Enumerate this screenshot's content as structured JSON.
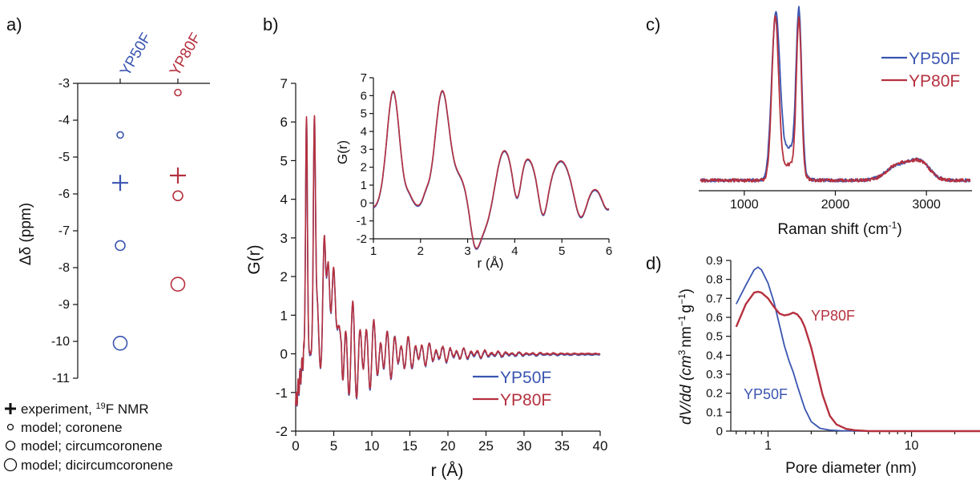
{
  "colors": {
    "yp50f": "#3a55b0",
    "yp80f": "#b5313f",
    "axis": "#111111"
  },
  "panels": {
    "a": {
      "label": "a)",
      "ylabel": "Δδ (ppm)",
      "series_labels": [
        "YP50F",
        "YP80F"
      ]
    },
    "b": {
      "label": "b)",
      "ylabel": "G(r)",
      "xlabel": "r (Å)",
      "inset_ylabel": "G(r)",
      "inset_xlabel": "r (Å)",
      "legend": [
        "YP50F",
        "YP80F"
      ]
    },
    "c": {
      "label": "c)",
      "xlabel": "Raman shift (cm",
      "xlabel_sup": "-1",
      "xlabel_end": ")",
      "legend": [
        "YP50F",
        "YP80F"
      ]
    },
    "d": {
      "label": "d)",
      "ylabel_main": "dV/dd (cm",
      "ylabel_rest": "nm",
      "ylabel_sup1": "3",
      "ylabel_sup2": "−1",
      "ylabel_g": "g",
      "ylabel_sup3": "−1",
      "ylabel_end": ")",
      "xlabel": "Pore diameter (nm)",
      "curve_labels": [
        "YP80F",
        "YP50F"
      ]
    }
  },
  "legend_a": [
    {
      "marker": "plus",
      "text": "experiment, ",
      "sup": "19",
      "after": "F NMR"
    },
    {
      "marker": "circle-small",
      "text": "model; coronene"
    },
    {
      "marker": "circle-medium",
      "text": "model; circumcoronene"
    },
    {
      "marker": "circle-large",
      "text": "model; dicircumcoronene"
    }
  ],
  "chart_data": [
    {
      "id": "a",
      "type": "scatter",
      "categories": [
        "YP50F",
        "YP80F"
      ],
      "ylabel": "Δδ (ppm)",
      "ylim": [
        -11,
        -3
      ],
      "yticks": [
        -11,
        -10,
        -9,
        -8,
        -7,
        -6,
        -5,
        -4,
        -3
      ],
      "series": [
        {
          "name": "experiment, 19F NMR",
          "marker": "plus",
          "values": [
            -5.7,
            -5.5
          ]
        },
        {
          "name": "model; coronene",
          "marker": "circle-small",
          "values": [
            -4.4,
            -3.25
          ]
        },
        {
          "name": "model; circumcoronene",
          "marker": "circle-medium",
          "values": [
            -7.4,
            -6.05
          ]
        },
        {
          "name": "model; dicircumcoronene",
          "marker": "circle-large",
          "values": [
            -10.05,
            -8.45
          ]
        }
      ]
    },
    {
      "id": "b",
      "type": "line",
      "xlabel": "r (Å)",
      "ylabel": "G(r)",
      "xlim": [
        0,
        40
      ],
      "ylim": [
        -2,
        7
      ],
      "xticks": [
        0,
        5,
        10,
        15,
        20,
        25,
        30,
        35,
        40
      ],
      "yticks": [
        -2,
        -1,
        0,
        1,
        2,
        3,
        4,
        5,
        6,
        7
      ],
      "peaks": {
        "r": [
          1.42,
          2.46,
          2.84,
          3.75,
          4.27,
          4.98,
          5.68
        ],
        "g": [
          6.1,
          6.05,
          1.3,
          3.0,
          2.3,
          2.2,
          0.7
        ]
      },
      "series": [
        {
          "name": "YP50F"
        },
        {
          "name": "YP80F"
        }
      ],
      "inset": {
        "xlim": [
          1,
          6
        ],
        "ylim": [
          -2,
          7
        ],
        "xticks": [
          1,
          2,
          3,
          4,
          5,
          6
        ],
        "yticks": [
          -2,
          -1,
          0,
          1,
          2,
          3,
          4,
          5,
          6,
          7
        ],
        "xlabel": "r (Å)",
        "ylabel": "G(r)"
      }
    },
    {
      "id": "c",
      "type": "line",
      "xlabel": "Raman shift (cm-1)",
      "xlim": [
        500,
        3500
      ],
      "xticks": [
        1000,
        2000,
        3000
      ],
      "series": [
        {
          "name": "YP50F",
          "peaks": [
            {
              "x": 1345,
              "h": 1.0,
              "w": 45
            },
            {
              "x": 1600,
              "h": 0.97,
              "w": 30
            },
            {
              "x": 1500,
              "h": 0.2,
              "w": 90
            },
            {
              "x": 2690,
              "h": 0.09,
              "w": 130
            },
            {
              "x": 2930,
              "h": 0.11,
              "w": 110
            }
          ]
        },
        {
          "name": "YP80F",
          "peaks": [
            {
              "x": 1340,
              "h": 1.0,
              "w": 38
            },
            {
              "x": 1600,
              "h": 0.96,
              "w": 28
            },
            {
              "x": 1500,
              "h": 0.1,
              "w": 90
            },
            {
              "x": 2690,
              "h": 0.1,
              "w": 120
            },
            {
              "x": 2930,
              "h": 0.11,
              "w": 105
            }
          ]
        }
      ]
    },
    {
      "id": "d",
      "type": "line",
      "xlabel": "Pore diameter (nm)",
      "ylabel": "dV/dd (cm3 nm−1 g−1)",
      "xscale": "log",
      "xlim": [
        0.55,
        30
      ],
      "ylim": [
        0,
        0.9
      ],
      "xticks": [
        1,
        10
      ],
      "yticks": [
        0,
        0.1,
        0.2,
        0.3,
        0.4,
        0.5,
        0.6,
        0.7,
        0.8,
        0.9
      ],
      "series": [
        {
          "name": "YP50F",
          "x": [
            0.6,
            0.7,
            0.8,
            0.85,
            0.9,
            1.0,
            1.1,
            1.2,
            1.3,
            1.4,
            1.5,
            1.6,
            1.8,
            2.0,
            2.3,
            2.7,
            3.2,
            5,
            10,
            30
          ],
          "y": [
            0.67,
            0.77,
            0.85,
            0.865,
            0.85,
            0.78,
            0.68,
            0.56,
            0.45,
            0.37,
            0.31,
            0.24,
            0.12,
            0.05,
            0.015,
            0.005,
            0.002,
            0.0,
            0.0,
            0.0
          ]
        },
        {
          "name": "YP80F",
          "x": [
            0.6,
            0.7,
            0.8,
            0.85,
            0.9,
            1.0,
            1.1,
            1.2,
            1.3,
            1.4,
            1.5,
            1.6,
            1.7,
            1.8,
            2.0,
            2.2,
            2.4,
            2.7,
            3.0,
            3.5,
            4,
            5,
            10,
            30
          ],
          "y": [
            0.55,
            0.67,
            0.73,
            0.735,
            0.73,
            0.7,
            0.655,
            0.62,
            0.61,
            0.615,
            0.625,
            0.615,
            0.59,
            0.55,
            0.44,
            0.31,
            0.19,
            0.08,
            0.035,
            0.012,
            0.005,
            0.0,
            0.0,
            0.0
          ]
        }
      ]
    }
  ]
}
